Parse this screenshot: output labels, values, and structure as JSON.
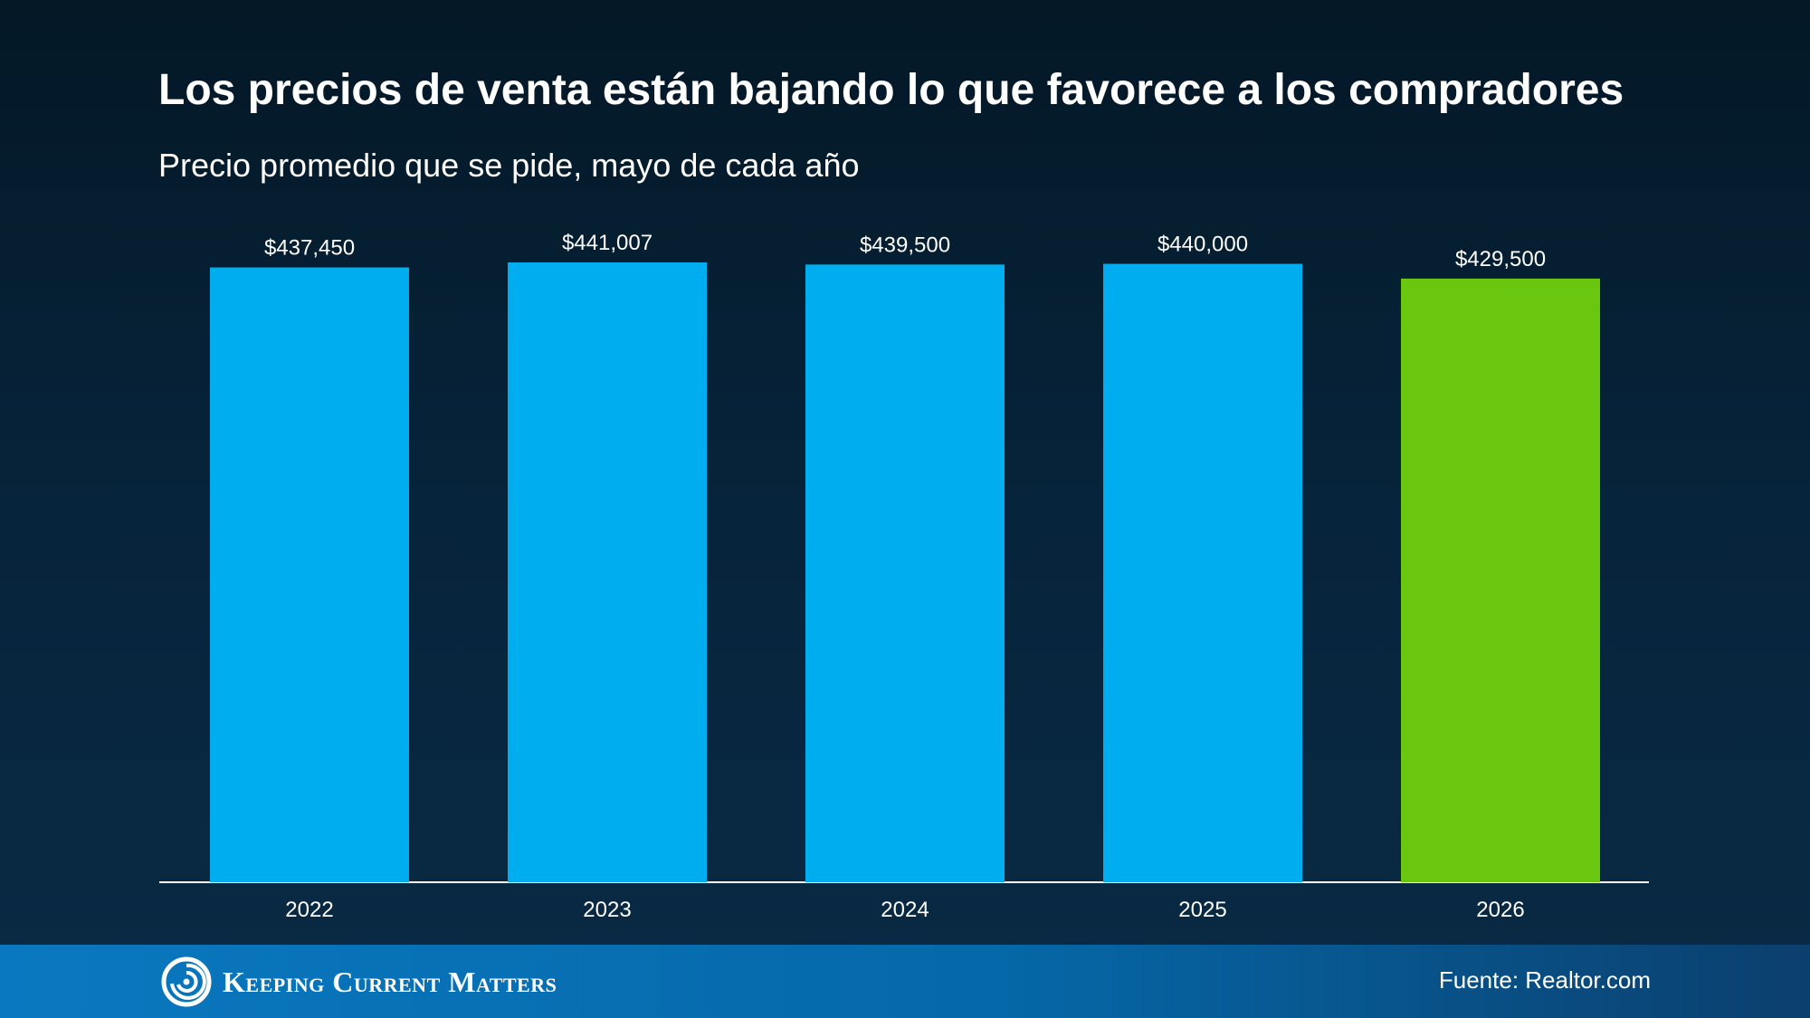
{
  "header": {
    "title": "Los precios de venta están bajando lo que favorece a los compradores",
    "subtitle": "Precio promedio que se pide, mayo de cada año"
  },
  "chart_data": {
    "type": "bar",
    "categories": [
      "2022",
      "2023",
      "2024",
      "2025",
      "2026"
    ],
    "values": [
      437450,
      441007,
      439500,
      440000,
      429500
    ],
    "value_labels": [
      "$437,450",
      "$441,007",
      "$439,500",
      "$440,000",
      "$429,500"
    ],
    "colors": [
      "#00adef",
      "#00adef",
      "#00adef",
      "#00adef",
      "#6ac70f"
    ],
    "ylim": [
      0,
      441007
    ],
    "grid": false,
    "legend": "none"
  },
  "footer": {
    "brand": "Keeping Current Matters",
    "source": "Fuente: Realtor.com",
    "brand_icon": "kcm-swirl-logo-icon"
  },
  "colors": {
    "bar_default": "#00adef",
    "bar_highlight": "#6ac70f",
    "axis": "#ffffff",
    "footer": "#0568a8"
  }
}
